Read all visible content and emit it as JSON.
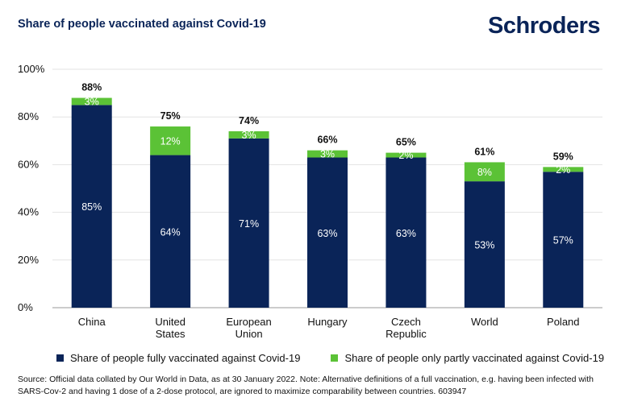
{
  "title": "Share of people vaccinated against Covid-19",
  "brand": "Schroders",
  "colors": {
    "fully": "#0a2458",
    "partly": "#5bc236",
    "grid": "#e3e3e3",
    "axis": "#9a9a9a"
  },
  "legend": {
    "fully": "Share of people fully vaccinated against Covid-19",
    "partly": "Share of people only partly vaccinated against Covid-19"
  },
  "source": "Source: Official data collated by Our World in Data, as at 30 January 2022. Note: Alternative definitions of a full vaccination, e.g. having been infected with SARS-Cov-2 and having 1 dose of a 2-dose protocol, are ignored to maximize comparability between countries. 603947",
  "chart_data": {
    "type": "bar",
    "stacked": true,
    "categories": [
      [
        "China"
      ],
      [
        "United",
        "States"
      ],
      [
        "European",
        "Union"
      ],
      [
        "Hungary"
      ],
      [
        "Czech",
        "Republic"
      ],
      [
        "World"
      ],
      [
        "Poland"
      ]
    ],
    "series": [
      {
        "name": "Share of people fully vaccinated against Covid-19",
        "values": [
          85,
          64,
          71,
          63,
          63,
          53,
          57
        ],
        "labels": [
          "85%",
          "64%",
          "71%",
          "63%",
          "63%",
          "53%",
          "57%"
        ]
      },
      {
        "name": "Share of people only partly vaccinated against Covid-19",
        "values": [
          3,
          12,
          3,
          3,
          2,
          8,
          2
        ],
        "labels": [
          "3%",
          "12%",
          "3%",
          "3%",
          "2%",
          "8%",
          "2%"
        ]
      }
    ],
    "totals": [
      "88%",
      "75%",
      "74%",
      "66%",
      "65%",
      "61%",
      "59%"
    ],
    "ylim": [
      0,
      100
    ],
    "yticks": [
      0,
      20,
      40,
      60,
      80,
      100
    ],
    "ytick_labels": [
      "0%",
      "20%",
      "40%",
      "60%",
      "80%",
      "100%"
    ],
    "grid": true,
    "legend_position": "bottom"
  }
}
